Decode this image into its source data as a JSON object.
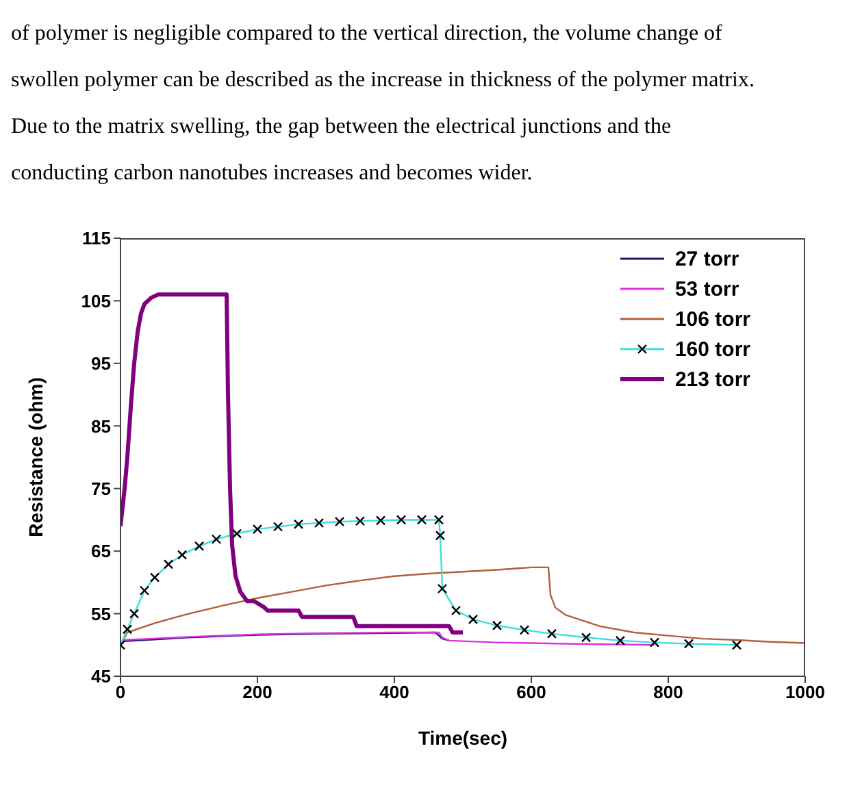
{
  "chart_data": {
    "type": "line",
    "xlabel": "Time(sec)",
    "ylabel": "Resistance (ohm)",
    "annotations": [
      "of polymer is negligible compared to the vertical direction, the volume change of",
      "swollen polymer can be described as the increase in thickness of the polymer matrix.",
      "Due to the matrix swelling, the gap between the electrical junctions and the",
      "conducting carbon nanotubes increases and becomes wider."
    ],
    "xlim": [
      0,
      1000
    ],
    "xticks": [
      0,
      200,
      400,
      600,
      800,
      1000
    ],
    "ylim": [
      45,
      115
    ],
    "yticks": [
      45,
      55,
      65,
      75,
      85,
      95,
      105,
      115
    ],
    "legend": "top right",
    "series": [
      {
        "name": "27 torr",
        "color": "#1a1a70",
        "x": [
          0,
          5,
          100,
          200,
          300,
          400,
          460,
          465,
          470,
          480
        ],
        "values": [
          50,
          50.6,
          51.2,
          51.6,
          51.8,
          51.9,
          52,
          51.5,
          51,
          50.7
        ]
      },
      {
        "name": "53 torr",
        "color": "#e030e0",
        "x": [
          0,
          5,
          100,
          200,
          300,
          400,
          465,
          470,
          480,
          550,
          650,
          780
        ],
        "values": [
          50,
          50.8,
          51.3,
          51.7,
          51.9,
          52,
          52,
          51.2,
          50.7,
          50.4,
          50.2,
          50
        ]
      },
      {
        "name": "106 torr",
        "color": "#b0603a",
        "x": [
          0,
          10,
          50,
          100,
          150,
          200,
          250,
          300,
          350,
          400,
          450,
          500,
          550,
          600,
          625,
          628,
          635,
          650,
          700,
          750,
          800,
          850,
          900,
          950,
          1000
        ],
        "values": [
          50,
          52,
          53.5,
          55,
          56.3,
          57.5,
          58.5,
          59.5,
          60.3,
          61,
          61.4,
          61.7,
          62,
          62.4,
          62.4,
          58,
          56,
          54.8,
          53,
          52,
          51.5,
          51,
          50.8,
          50.5,
          50.3
        ]
      },
      {
        "name": "160 torr",
        "color": "#40dcdc",
        "marker": "cross",
        "x": [
          0,
          10,
          20,
          35,
          50,
          70,
          90,
          115,
          140,
          170,
          200,
          230,
          260,
          290,
          320,
          350,
          380,
          410,
          440,
          465,
          467,
          470,
          490,
          515,
          550,
          590,
          630,
          680,
          730,
          780,
          830,
          900
        ],
        "values": [
          50,
          52.5,
          55,
          58.7,
          60.8,
          62.9,
          64.4,
          65.8,
          66.9,
          67.8,
          68.5,
          68.9,
          69.3,
          69.5,
          69.7,
          69.8,
          69.9,
          70,
          70,
          70,
          67.5,
          59,
          55.5,
          54.1,
          53.1,
          52.4,
          51.8,
          51.2,
          50.7,
          50.4,
          50.2,
          50
        ]
      },
      {
        "name": "213 torr",
        "color": "#800080",
        "x": [
          0,
          3,
          6,
          10,
          15,
          20,
          25,
          30,
          35,
          45,
          55,
          155,
          157,
          160,
          163,
          168,
          175,
          185,
          195,
          210,
          215,
          260,
          265,
          340,
          345,
          480,
          485,
          500
        ],
        "values": [
          69,
          72,
          75,
          80,
          88,
          95,
          100,
          103,
          104.5,
          105.5,
          106,
          106,
          90,
          75,
          66,
          61,
          58.5,
          57,
          57,
          56,
          55.5,
          55.5,
          54.5,
          54.5,
          53,
          53,
          52,
          52
        ]
      }
    ]
  }
}
